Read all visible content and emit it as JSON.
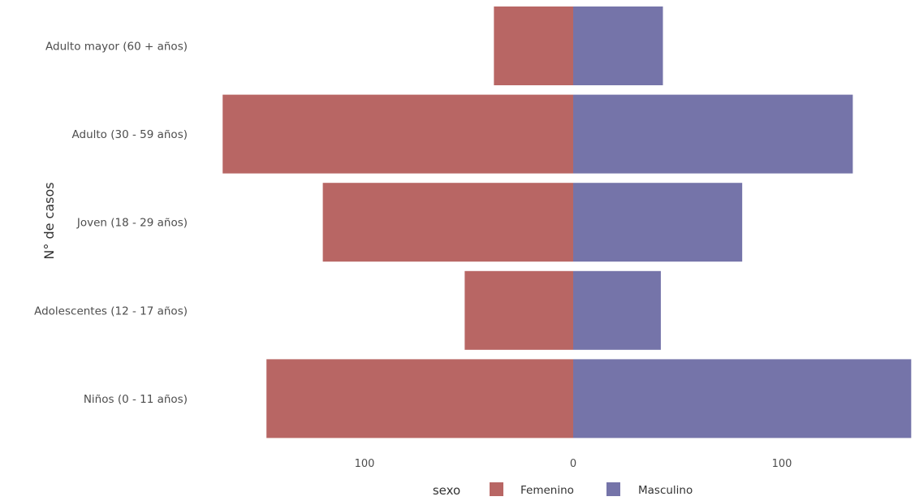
{
  "chart_data": {
    "type": "bar",
    "orientation": "horizontal",
    "layout": "population-pyramid",
    "categories": [
      "Adulto mayor (60 + años)",
      "Adulto (30 - 59 años)",
      "Joven (18 - 29 años)",
      "Adolescentes (12 - 17 años)",
      "Niños (0 - 11 años)"
    ],
    "series": [
      {
        "name": "Femenino",
        "color": "#b86664",
        "values": [
          38,
          168,
          120,
          52,
          147
        ],
        "side": "left"
      },
      {
        "name": "Masculino",
        "color": "#7574a9",
        "values": [
          43,
          134,
          81,
          42,
          162
        ],
        "side": "right"
      }
    ],
    "xticks": [
      {
        "value": -100,
        "label": "100"
      },
      {
        "value": 0,
        "label": "0"
      },
      {
        "value": 100,
        "label": "100"
      }
    ],
    "xlim": [
      -168,
      162
    ],
    "ylabel": "N° de casos",
    "xlabel": "",
    "legend": {
      "title": "sexo",
      "position": "bottom"
    },
    "grid": false
  }
}
